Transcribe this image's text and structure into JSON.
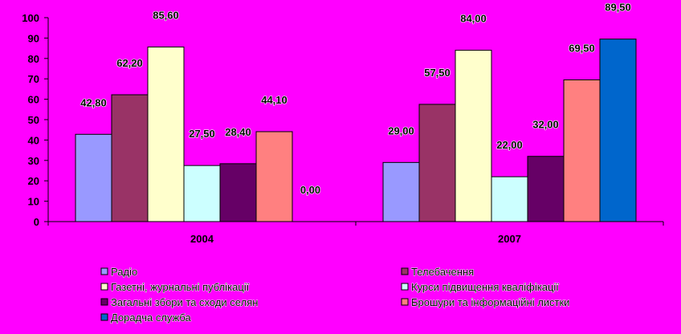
{
  "chart_data": {
    "type": "bar",
    "categories": [
      "2004",
      "2007"
    ],
    "ylim": [
      0,
      100
    ],
    "ytick_step": 10,
    "grid": false,
    "legend_position": "bottom",
    "series": [
      {
        "name": "Радіо",
        "color": "#9999FF",
        "values": [
          42.8,
          29.0
        ],
        "labels": [
          "42,80",
          "29,00"
        ]
      },
      {
        "name": "Телебачення",
        "color": "#993366",
        "values": [
          62.2,
          57.5
        ],
        "labels": [
          "62,20",
          "57,50"
        ]
      },
      {
        "name": "Газетні, журнальні публікації",
        "color": "#FFFFCC",
        "values": [
          85.6,
          84.0
        ],
        "labels": [
          "85,60",
          "84,00"
        ]
      },
      {
        "name": "Курси підвищення кваліфікації",
        "color": "#CCFFFF",
        "values": [
          27.5,
          22.0
        ],
        "labels": [
          "27,50",
          "22,00"
        ]
      },
      {
        "name": "Загальні збори та сходи селян",
        "color": "#660066",
        "values": [
          28.4,
          32.0
        ],
        "labels": [
          "28,40",
          "32,00"
        ]
      },
      {
        "name": "Брошури та інформаційні листки",
        "color": "#FF8080",
        "values": [
          44.1,
          69.5
        ],
        "labels": [
          "44,10",
          "69,50"
        ]
      },
      {
        "name": "Дорадча служба",
        "color": "#0066CC",
        "values": [
          0.0,
          89.5
        ],
        "labels": [
          "0,00",
          "89,50"
        ]
      }
    ]
  }
}
